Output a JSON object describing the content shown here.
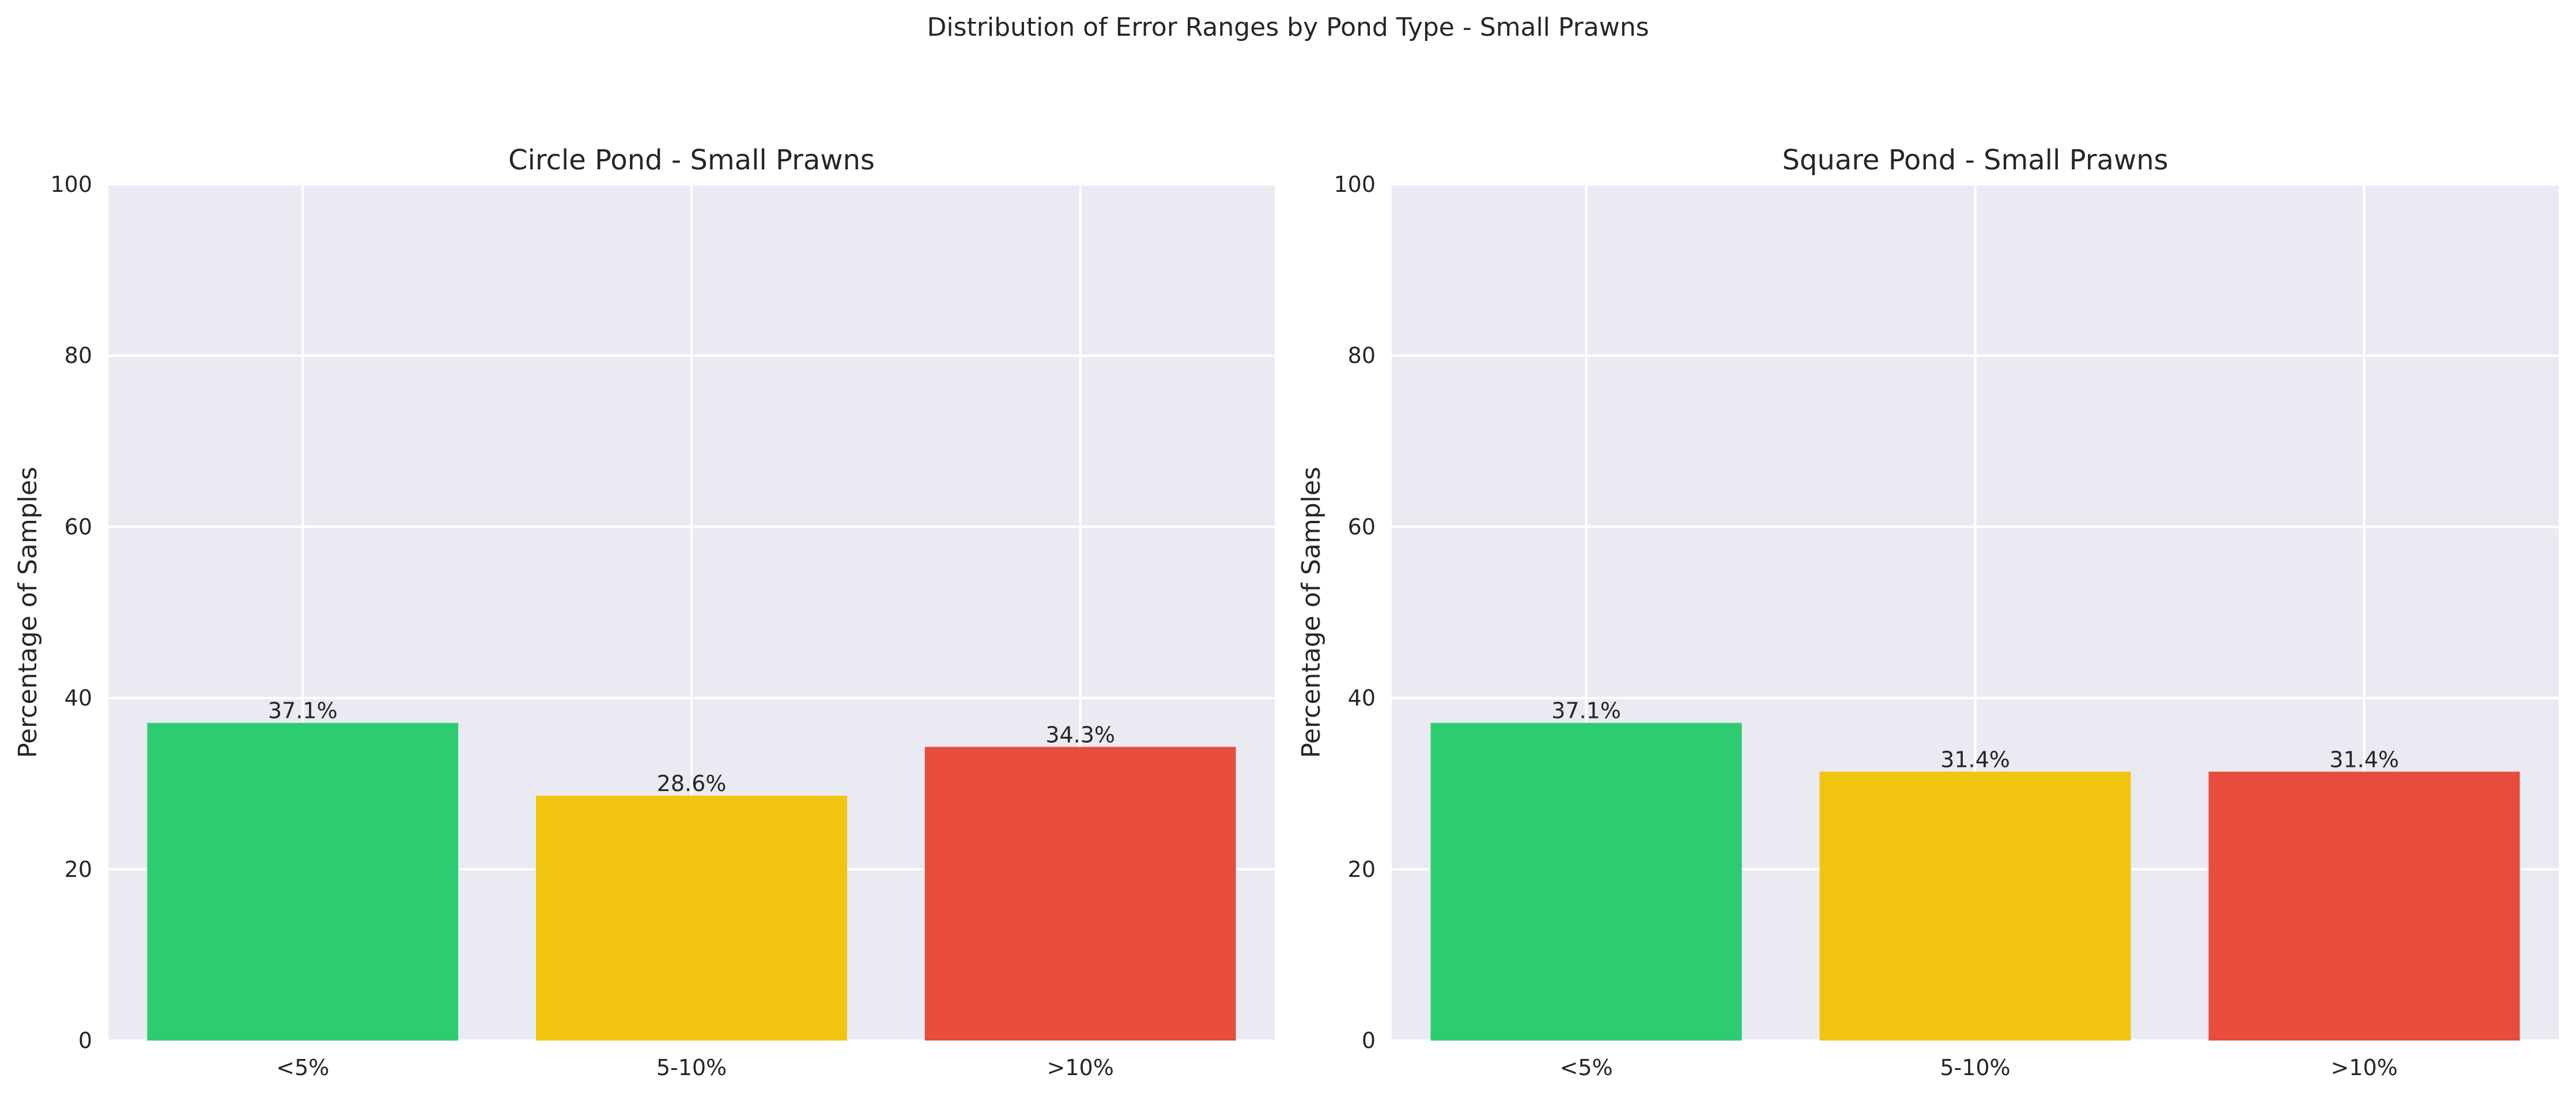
{
  "figure": {
    "suptitle": "Distribution of Error Ranges by Pond Type - Small Prawns"
  },
  "chart_data": [
    {
      "type": "bar",
      "title": "Circle Pond - Small Prawns",
      "xlabel": "",
      "ylabel": "Percentage of Samples",
      "categories": [
        "<5%",
        "5-10%",
        ">10%"
      ],
      "values": [
        37.1,
        28.6,
        34.3
      ],
      "value_labels": [
        "37.1%",
        "28.6%",
        "34.3%"
      ],
      "colors": [
        "#2ECC71",
        "#F1C40F",
        "#E74C3C"
      ],
      "ylim": [
        0,
        100
      ],
      "yticks": [
        0,
        20,
        40,
        60,
        80,
        100
      ],
      "ytick_labels": [
        "0",
        "20",
        "40",
        "60",
        "80",
        "100"
      ],
      "grid": true,
      "plot_background": "#EAEAF2",
      "grid_color": "#FFFFFF"
    },
    {
      "type": "bar",
      "title": "Square Pond - Small Prawns",
      "xlabel": "",
      "ylabel": "Percentage of Samples",
      "categories": [
        "<5%",
        "5-10%",
        ">10%"
      ],
      "values": [
        37.1,
        31.4,
        31.4
      ],
      "value_labels": [
        "37.1%",
        "31.4%",
        "31.4%"
      ],
      "colors": [
        "#2ECC71",
        "#F1C40F",
        "#E74C3C"
      ],
      "ylim": [
        0,
        100
      ],
      "yticks": [
        0,
        20,
        40,
        60,
        80,
        100
      ],
      "ytick_labels": [
        "0",
        "20",
        "40",
        "60",
        "80",
        "100"
      ],
      "grid": true,
      "plot_background": "#EAEAF2",
      "grid_color": "#FFFFFF"
    }
  ]
}
